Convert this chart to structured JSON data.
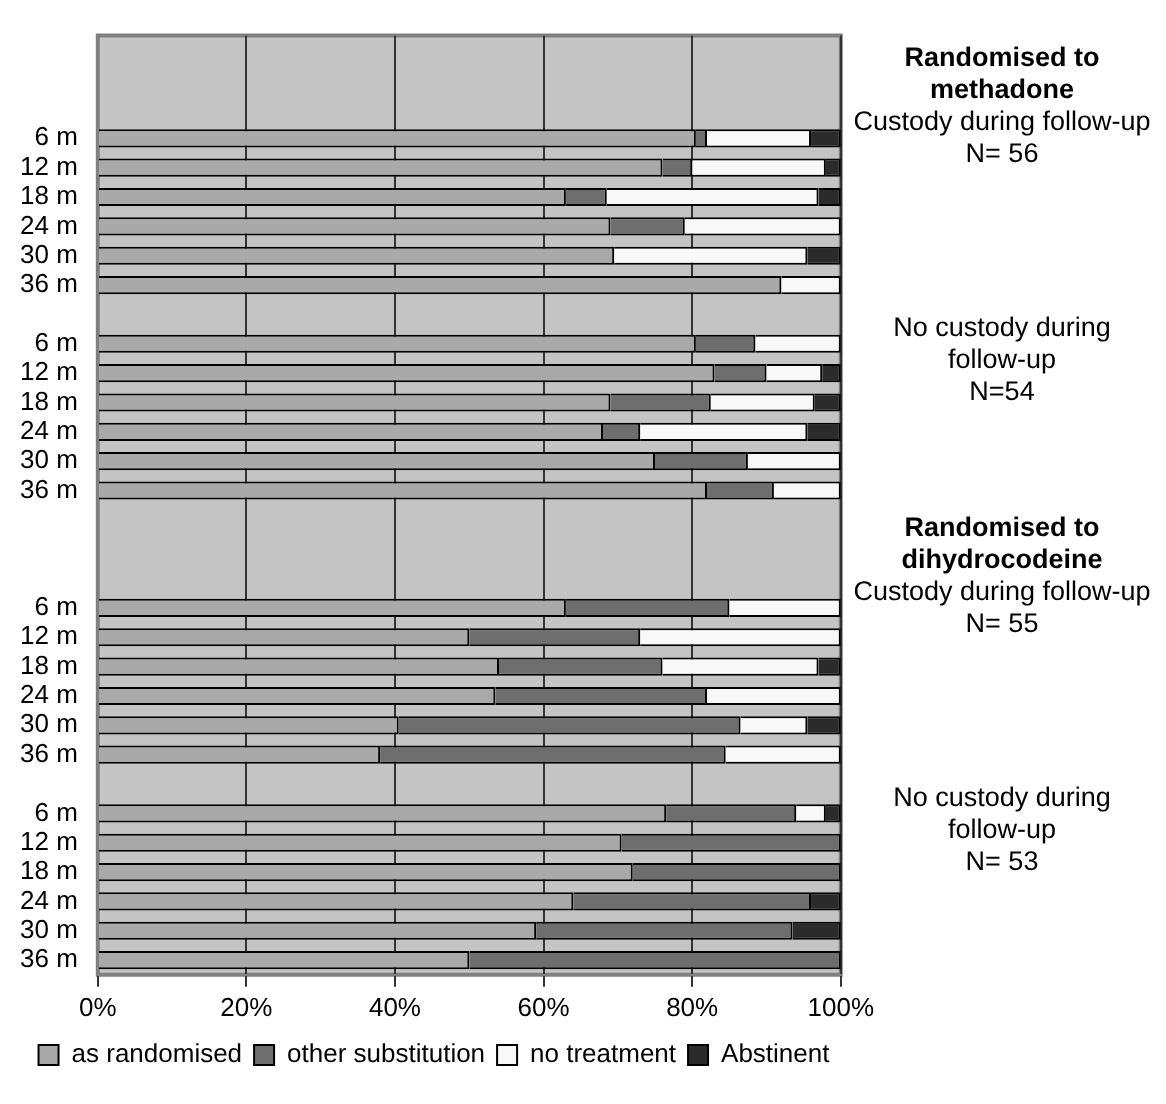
{
  "chart_data": {
    "type": "bar",
    "orientation": "horizontal",
    "stacked": true,
    "categories": [
      null,
      null,
      null,
      "6 m",
      "12 m",
      "18 m",
      "24 m",
      "30 m",
      "36 m",
      null,
      "6 m",
      "12 m",
      "18 m",
      "24 m",
      "30 m",
      "36 m",
      null,
      null,
      null,
      "6 m",
      "12 m",
      "18 m",
      "24 m",
      "30 m",
      "36 m",
      null,
      "6 m",
      "12 m",
      "18 m",
      "24 m",
      "30 m",
      "36 m"
    ],
    "series": [
      {
        "name": "as randomised",
        "color": "#a9a9a9",
        "values": [
          null,
          null,
          null,
          80.5,
          76,
          63,
          69,
          69.5,
          92,
          null,
          80.5,
          83,
          69,
          68,
          75,
          82,
          null,
          null,
          null,
          63,
          50,
          54,
          53.5,
          40.5,
          38,
          null,
          76.5,
          70.5,
          72,
          64,
          59,
          50
        ]
      },
      {
        "name": "other substitution",
        "color": "#6e6e6e",
        "values": [
          null,
          null,
          null,
          1.5,
          4,
          5.5,
          10,
          0,
          0,
          null,
          8,
          7,
          13.5,
          5,
          12.5,
          9,
          null,
          null,
          null,
          22,
          23,
          22,
          28.5,
          46,
          46.5,
          null,
          17.5,
          29.5,
          28,
          32,
          34.5,
          50
        ]
      },
      {
        "name": "no treatment",
        "color": "#f8f8f8",
        "values": [
          null,
          null,
          null,
          14,
          18,
          28.5,
          21,
          26,
          8,
          null,
          11.5,
          7.5,
          14,
          22.5,
          12.5,
          9,
          null,
          null,
          null,
          15,
          27,
          21,
          18,
          9,
          15.5,
          null,
          4,
          0,
          0,
          0,
          0,
          0
        ]
      },
      {
        "name": "Abstinent",
        "color": "#2b2b2b",
        "values": [
          null,
          null,
          null,
          4,
          2,
          3,
          0,
          4.5,
          0,
          null,
          0,
          2.5,
          3.5,
          4.5,
          0,
          0,
          null,
          null,
          null,
          0,
          0,
          3,
          0,
          4.5,
          0,
          null,
          2,
          0,
          0,
          4,
          6.5,
          0
        ]
      }
    ],
    "xlim": [
      0,
      100
    ],
    "xticks": [
      {
        "value": 0,
        "label": "0%"
      },
      {
        "value": 20,
        "label": "20%"
      },
      {
        "value": 40,
        "label": "40%"
      },
      {
        "value": 60,
        "label": "60%"
      },
      {
        "value": 80,
        "label": "80%"
      },
      {
        "value": 100,
        "label": "100%"
      }
    ],
    "grid": "x",
    "legend": "bottom",
    "annotations": [
      "Randomised to methadone",
      "Custody during follow-up\nN= 56",
      "No custody during follow-up\nN=54",
      "Randomised to dihydrocodeine",
      "Custody during follow-up\nN= 55",
      "No custody during follow-up\nN= 53"
    ]
  }
}
